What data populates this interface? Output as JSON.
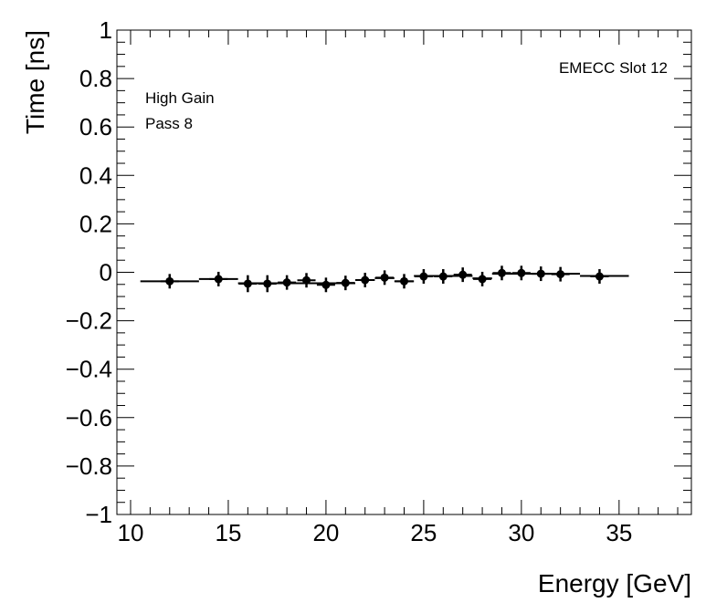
{
  "chart_data": {
    "type": "scatter",
    "xlabel": "Energy [GeV]",
    "ylabel": "Time [ns]",
    "xlim": [
      9.3,
      38.7
    ],
    "ylim": [
      -1,
      1
    ],
    "x_ticks": [
      10,
      15,
      20,
      25,
      30,
      35
    ],
    "x_tick_labels": [
      "10",
      "15",
      "20",
      "25",
      "30",
      "35"
    ],
    "y_ticks": [
      -1,
      -0.8,
      -0.6,
      -0.4,
      -0.2,
      0,
      0.2,
      0.4,
      0.6,
      0.8,
      1
    ],
    "y_tick_labels": [
      "−1",
      "−0.8",
      "−0.6",
      "−0.4",
      "−0.2",
      "0",
      "0.2",
      "0.4",
      "0.6",
      "0.8",
      "1"
    ],
    "grid": false,
    "annotations": {
      "slot": "EMECC Slot 12",
      "gain": "High Gain",
      "pass": "Pass 8"
    },
    "series": [
      {
        "name": "points",
        "points": [
          {
            "x": 12.0,
            "y": -0.037,
            "yerr": 0.03
          },
          {
            "x": 14.5,
            "y": -0.028,
            "yerr": 0.03
          },
          {
            "x": 16.0,
            "y": -0.047,
            "yerr": 0.035
          },
          {
            "x": 17.0,
            "y": -0.047,
            "yerr": 0.035
          },
          {
            "x": 18.0,
            "y": -0.042,
            "yerr": 0.03
          },
          {
            "x": 19.0,
            "y": -0.033,
            "yerr": 0.03
          },
          {
            "x": 20.0,
            "y": -0.052,
            "yerr": 0.03
          },
          {
            "x": 21.0,
            "y": -0.044,
            "yerr": 0.03
          },
          {
            "x": 22.0,
            "y": -0.032,
            "yerr": 0.03
          },
          {
            "x": 23.0,
            "y": -0.022,
            "yerr": 0.03
          },
          {
            "x": 24.0,
            "y": -0.037,
            "yerr": 0.03
          },
          {
            "x": 25.0,
            "y": -0.017,
            "yerr": 0.03
          },
          {
            "x": 26.0,
            "y": -0.017,
            "yerr": 0.03
          },
          {
            "x": 27.0,
            "y": -0.01,
            "yerr": 0.03
          },
          {
            "x": 28.0,
            "y": -0.028,
            "yerr": 0.03
          },
          {
            "x": 29.0,
            "y": -0.003,
            "yerr": 0.03
          },
          {
            "x": 30.0,
            "y": -0.003,
            "yerr": 0.03
          },
          {
            "x": 31.0,
            "y": -0.006,
            "yerr": 0.03
          },
          {
            "x": 32.0,
            "y": -0.008,
            "yerr": 0.03
          },
          {
            "x": 34.0,
            "y": -0.017,
            "yerr": 0.03
          }
        ]
      },
      {
        "name": "fit",
        "segments": [
          {
            "x0": 10.5,
            "x1": 13.5,
            "y": -0.037
          },
          {
            "x0": 13.5,
            "x1": 15.5,
            "y": -0.028
          },
          {
            "x0": 15.5,
            "x1": 21.5,
            "y": -0.045
          },
          {
            "x0": 21.5,
            "x1": 22.5,
            "y": -0.032
          },
          {
            "x0": 22.5,
            "x1": 23.5,
            "y": -0.024
          },
          {
            "x0": 23.5,
            "x1": 24.5,
            "y": -0.037
          },
          {
            "x0": 24.5,
            "x1": 27.5,
            "y": -0.015
          },
          {
            "x0": 27.5,
            "x1": 28.5,
            "y": -0.025
          },
          {
            "x0": 28.5,
            "x1": 33.0,
            "y": -0.006
          },
          {
            "x0": 33.0,
            "x1": 35.5,
            "y": -0.015
          }
        ]
      }
    ]
  }
}
